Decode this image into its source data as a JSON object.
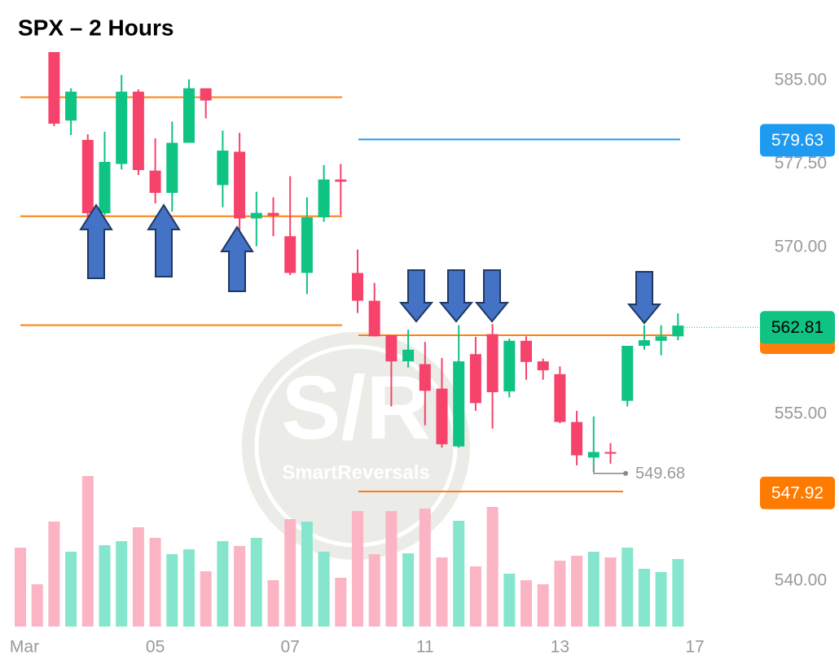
{
  "chart_data": {
    "type": "candlestick",
    "title": "SPX – 2 Hours",
    "categories": [
      "Mar",
      null,
      null,
      null,
      null,
      null,
      null,
      null,
      "05",
      null,
      null,
      null,
      null,
      null,
      null,
      null,
      "07",
      null,
      null,
      null,
      null,
      null,
      null,
      null,
      "11",
      null,
      null,
      null,
      null,
      null,
      null,
      null,
      "13",
      null,
      null,
      null,
      null,
      null,
      null,
      null,
      "17"
    ],
    "open": [
      null,
      null,
      587.56,
      581.4,
      579.66,
      573.07,
      577.5,
      584.0,
      576.9,
      574.9,
      579.4,
      584.3,
      575.6,
      578.6,
      572.6,
      573.1,
      571.0,
      567.7,
      572.7,
      576.1,
      567.7,
      565.2,
      562.1,
      559.75,
      559.5,
      557.3,
      552.1,
      560.4,
      562.2,
      557.05,
      561.6,
      559.75,
      558.6,
      554.3,
      551.1,
      551.6,
      556.2,
      561.15,
      561.6,
      562.0,
      null
    ],
    "high": [
      null,
      null,
      587.56,
      584.3,
      580.17,
      580.4,
      585.5,
      584.2,
      579.8,
      581.3,
      585.1,
      584.3,
      580.5,
      580.3,
      575.0,
      574.5,
      576.4,
      574.5,
      577.4,
      577.5,
      569.8,
      566.8,
      562.1,
      562.6,
      561.5,
      560.05,
      563.0,
      561.95,
      563.1,
      561.8,
      562.0,
      560.0,
      559.3,
      555.3,
      554.8,
      552.4,
      561.15,
      563.0,
      563.0,
      564.07,
      null
    ],
    "low": [
      null,
      null,
      580.9,
      580.1,
      572.34,
      572.9,
      577.0,
      576.5,
      573.95,
      573.2,
      579.4,
      581.6,
      573.6,
      571.0,
      570.1,
      571.0,
      567.5,
      565.8,
      572.3,
      572.9,
      564.1,
      562.0,
      555.7,
      559.2,
      554.0,
      552.0,
      552.0,
      555.3,
      553.7,
      556.5,
      558.1,
      558.1,
      554.2,
      550.4,
      549.8,
      550.55,
      555.7,
      560.8,
      560.3,
      561.65,
      null
    ],
    "close": [
      null,
      null,
      581.12,
      584.0,
      573.07,
      577.68,
      584.0,
      576.95,
      574.9,
      579.4,
      584.3,
      583.2,
      578.7,
      572.6,
      573.1,
      572.85,
      567.7,
      572.7,
      576.1,
      575.9,
      565.2,
      562.0,
      559.75,
      560.8,
      557.1,
      552.3,
      559.75,
      556.0,
      556.98,
      561.6,
      559.7,
      558.95,
      554.3,
      551.3,
      551.6,
      551.45,
      561.15,
      561.65,
      562.0,
      562.97,
      null
    ],
    "up_color": "#0fc383",
    "down_color": "#f6436b",
    "volume": [
      97,
      52,
      129,
      92,
      185,
      100,
      105,
      122,
      109,
      89,
      95,
      68,
      105,
      99,
      109,
      57,
      132,
      129,
      92,
      60,
      142,
      89,
      142,
      90,
      145,
      85,
      130,
      74,
      147,
      65,
      57,
      52,
      81,
      87,
      92,
      85,
      97,
      71,
      67,
      83,
      null
    ],
    "volume_colors": [
      "#fbb4c3",
      "#fbb4c3",
      "#fbb4c3",
      "#86e6cd",
      "#fbb4c3",
      "#86e6cd",
      "#86e6cd",
      "#fbb4c3",
      "#fbb4c3",
      "#86e6cd",
      "#86e6cd",
      "#fbb4c3",
      "#86e6cd",
      "#fbb4c3",
      "#86e6cd",
      "#fbb4c3",
      "#fbb4c3",
      "#86e6cd",
      "#86e6cd",
      "#fbb4c3",
      "#fbb4c3",
      "#fbb4c3",
      "#fbb4c3",
      "#86e6cd",
      "#fbb4c3",
      "#fbb4c3",
      "#86e6cd",
      "#fbb4c3",
      "#fbb4c3",
      "#86e6cd",
      "#fbb4c3",
      "#fbb4c3",
      "#fbb4c3",
      "#fbb4c3",
      "#86e6cd",
      "#fbb4c3",
      "#86e6cd",
      "#86e6cd",
      "#86e6cd",
      "#86e6cd",
      null
    ],
    "ylim": [
      532.54,
      592.24
    ],
    "yticks": [
      {
        "value": 585,
        "label": "585.00"
      },
      {
        "value": 577.5,
        "label": "577.50"
      },
      {
        "value": 570,
        "label": "570.00"
      },
      {
        "value": 555,
        "label": "555.00"
      },
      {
        "value": 540,
        "label": "540.00"
      }
    ],
    "levels": [
      {
        "value": 583.5,
        "color": "#ff7f0e"
      },
      {
        "value": 572.8,
        "color": "#ff7f0e"
      },
      {
        "value": 563.0,
        "color": "#ff7f0e"
      },
      {
        "value": 562.1,
        "color": "#ff7f0e"
      },
      {
        "value": 548.05,
        "color": "#ff7f0e"
      },
      {
        "value": 579.7,
        "color": "#1e9bf0"
      }
    ],
    "price_labels": [
      {
        "value": 579.63,
        "color": "#1e9bf0"
      },
      {
        "value": 562.81,
        "color": "#0fc383"
      },
      {
        "value": 547.92,
        "color": "#ff7b00"
      }
    ],
    "low_annotation": 549.68,
    "watermark": {
      "big": "S/R",
      "small": "SmartReversals"
    }
  }
}
